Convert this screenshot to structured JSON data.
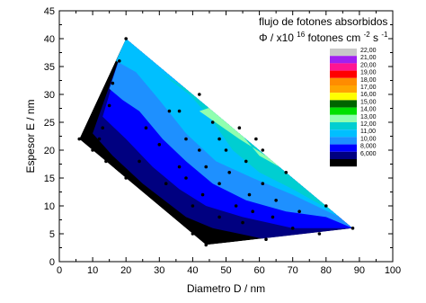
{
  "chart_data": {
    "type": "contour",
    "xlabel": "Diametro D / nm",
    "ylabel": "Espesor E / nm",
    "xlim": [
      0,
      100
    ],
    "ylim": [
      0,
      45
    ],
    "x_ticks": [
      0,
      10,
      20,
      30,
      40,
      50,
      60,
      70,
      80,
      90,
      100
    ],
    "y_ticks": [
      0,
      5,
      10,
      15,
      20,
      25,
      30,
      35,
      40,
      45
    ],
    "grid": false,
    "legend": {
      "position": "top-right",
      "title_line1": "flujo de fotones absorbidos",
      "title_line2_prefix": "Φ / x10",
      "title_line2_exp": "16",
      "title_line2_mid": " fotones cm",
      "title_line2_exp2": "-2",
      "title_line2_mid2": " s",
      "title_line2_exp3": "-1",
      "levels": [
        {
          "label": "22,00",
          "color": "#c8c8c8"
        },
        {
          "label": "21,00",
          "color": "#a020f0"
        },
        {
          "label": "20,00",
          "color": "#ff1493"
        },
        {
          "label": "19,00",
          "color": "#ff0000"
        },
        {
          "label": "18,00",
          "color": "#ff8c00"
        },
        {
          "label": "17,00",
          "color": "#ffa500"
        },
        {
          "label": "16,00",
          "color": "#ffff00"
        },
        {
          "label": "15,00",
          "color": "#006400"
        },
        {
          "label": "14,00",
          "color": "#00e000"
        },
        {
          "label": "13,00",
          "color": "#90ffb0"
        },
        {
          "label": "12,00",
          "color": "#00ced1"
        },
        {
          "label": "11,00",
          "color": "#00bfff"
        },
        {
          "label": "10,00",
          "color": "#1e90ff"
        },
        {
          "label": "8,000",
          "color": "#0000ff"
        },
        {
          "label": "6,000",
          "color": "#000080"
        },
        {
          "label": "",
          "color": "#000000"
        }
      ]
    },
    "domain_outline": [
      [
        6,
        22
      ],
      [
        20,
        40
      ],
      [
        88,
        6
      ],
      [
        44,
        3
      ]
    ],
    "contour_bands": [
      {
        "color": "#000000",
        "polygon": [
          [
            6,
            22
          ],
          [
            20,
            40
          ],
          [
            88,
            6
          ],
          [
            44,
            3
          ]
        ]
      },
      {
        "color": "#000080",
        "polygon": [
          [
            10,
            23
          ],
          [
            20,
            40
          ],
          [
            88,
            6
          ],
          [
            62,
            4
          ],
          [
            46,
            6
          ],
          [
            38,
            8
          ],
          [
            25,
            14
          ],
          [
            16,
            19
          ]
        ]
      },
      {
        "color": "#0000ff",
        "polygon": [
          [
            13,
            26
          ],
          [
            20,
            40
          ],
          [
            88,
            6
          ],
          [
            70,
            6
          ],
          [
            55,
            8
          ],
          [
            44,
            10
          ],
          [
            36,
            13
          ],
          [
            28,
            17
          ],
          [
            20,
            22
          ]
        ]
      },
      {
        "color": "#1e90ff",
        "polygon": [
          [
            15,
            31
          ],
          [
            20,
            40
          ],
          [
            88,
            6
          ],
          [
            80,
            8
          ],
          [
            68,
            9
          ],
          [
            56,
            11
          ],
          [
            46,
            14
          ],
          [
            38,
            18
          ],
          [
            31,
            22
          ],
          [
            24,
            27
          ],
          [
            19,
            29
          ]
        ]
      },
      {
        "color": "#00bfff",
        "polygon": [
          [
            17,
            36
          ],
          [
            20,
            40
          ],
          [
            84,
            8
          ],
          [
            70,
            12
          ],
          [
            58,
            15
          ],
          [
            47,
            18
          ],
          [
            38,
            23
          ],
          [
            30,
            29
          ],
          [
            23,
            34
          ]
        ]
      },
      {
        "color": "#00ced1",
        "polygon": [
          [
            30,
            34
          ],
          [
            38,
            31
          ],
          [
            82,
            9
          ],
          [
            70,
            13
          ],
          [
            60,
            16
          ],
          [
            52,
            20
          ],
          [
            45,
            26
          ],
          [
            39,
            30
          ]
        ]
      },
      {
        "color": "#90ffb0",
        "polygon": [
          [
            42,
            27
          ],
          [
            54,
            22
          ],
          [
            78,
            13
          ],
          [
            72,
            16
          ],
          [
            66,
            17
          ],
          [
            60,
            19
          ],
          [
            53,
            24
          ],
          [
            47,
            28
          ]
        ]
      }
    ],
    "points": [
      [
        6,
        22
      ],
      [
        8,
        22
      ],
      [
        10,
        20
      ],
      [
        12,
        22
      ],
      [
        13,
        24
      ],
      [
        14,
        18
      ],
      [
        15,
        28
      ],
      [
        16,
        32
      ],
      [
        18,
        36
      ],
      [
        20,
        40
      ],
      [
        20,
        15
      ],
      [
        24,
        18
      ],
      [
        26,
        24
      ],
      [
        28,
        12
      ],
      [
        30,
        21
      ],
      [
        32,
        10
      ],
      [
        32,
        14
      ],
      [
        33,
        27
      ],
      [
        35,
        8
      ],
      [
        36,
        17
      ],
      [
        36,
        27
      ],
      [
        37,
        7
      ],
      [
        38,
        15
      ],
      [
        38,
        22
      ],
      [
        40,
        10
      ],
      [
        40,
        5
      ],
      [
        42,
        20
      ],
      [
        42,
        30
      ],
      [
        43,
        12
      ],
      [
        44,
        3
      ],
      [
        44,
        17
      ],
      [
        46,
        25
      ],
      [
        48,
        8
      ],
      [
        48,
        14
      ],
      [
        48,
        22
      ],
      [
        50,
        20
      ],
      [
        51,
        16
      ],
      [
        53,
        10
      ],
      [
        54,
        24
      ],
      [
        55,
        7
      ],
      [
        56,
        18
      ],
      [
        57,
        12
      ],
      [
        58,
        9
      ],
      [
        59,
        22
      ],
      [
        61,
        14
      ],
      [
        61,
        20
      ],
      [
        62,
        4
      ],
      [
        64,
        8
      ],
      [
        65,
        11
      ],
      [
        68,
        16
      ],
      [
        70,
        6
      ],
      [
        72,
        9
      ],
      [
        78,
        5
      ],
      [
        80,
        10
      ],
      [
        88,
        6
      ]
    ]
  }
}
